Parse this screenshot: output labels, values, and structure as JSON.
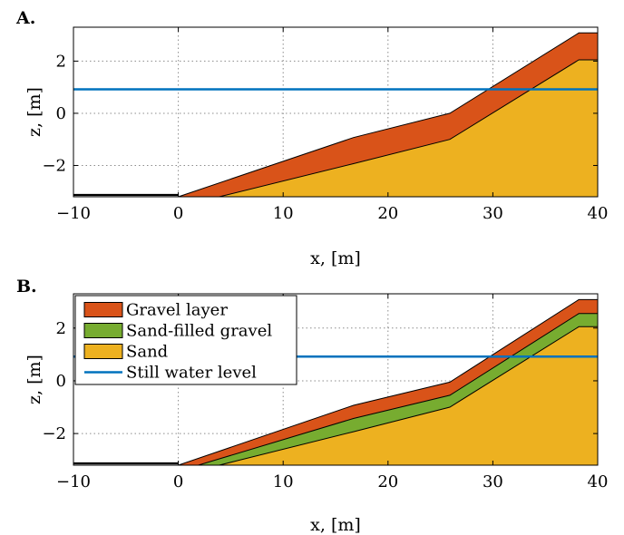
{
  "figure": {
    "panel_labels": [
      "A.",
      "B."
    ]
  },
  "colors": {
    "gravel": "#D95319",
    "sand_filled_gravel": "#77AC30",
    "sand": "#EDB120",
    "water": "#0072BD",
    "grid": "#8c8c8c"
  },
  "chart_data": [
    {
      "type": "area",
      "panel": "A.",
      "xlabel": "x, [m]",
      "ylabel": "z, [m]",
      "xlim": [
        -10,
        40
      ],
      "ylim": [
        -3.2,
        3.3
      ],
      "xticks": [
        -10,
        0,
        10,
        20,
        30,
        40
      ],
      "yticks": [
        -2,
        0,
        2
      ],
      "xtick_labels": [
        "−10",
        "0",
        "10",
        "20",
        "30",
        "40"
      ],
      "ytick_labels": [
        "−2",
        "0",
        "2"
      ],
      "grid": true,
      "still_water_level": 0.92,
      "layers": [
        {
          "name": "Gravel layer",
          "color": "#D95319",
          "x": [
            0,
            16.7,
            25.9,
            38.2,
            40
          ],
          "top": [
            -3.2,
            -0.93,
            0.0,
            3.08,
            3.08
          ]
        },
        {
          "name": "Sand",
          "color": "#EDB120",
          "x": [
            3.9,
            16.7,
            25.9,
            38.2,
            40
          ],
          "top": [
            -3.2,
            -1.93,
            -1.0,
            2.05,
            2.05
          ]
        }
      ],
      "legend": []
    },
    {
      "type": "area",
      "panel": "B.",
      "xlabel": "x, [m]",
      "ylabel": "z, [m]",
      "xlim": [
        -10,
        40
      ],
      "ylim": [
        -3.2,
        3.3
      ],
      "xticks": [
        -10,
        0,
        10,
        20,
        30,
        40
      ],
      "yticks": [
        -2,
        0,
        2
      ],
      "xtick_labels": [
        "−10",
        "0",
        "10",
        "20",
        "30",
        "40"
      ],
      "ytick_labels": [
        "−2",
        "0",
        "2"
      ],
      "grid": true,
      "still_water_level": 0.92,
      "layers": [
        {
          "name": "Gravel layer",
          "color": "#D95319",
          "x": [
            0,
            16.7,
            25.9,
            38.2,
            40
          ],
          "top": [
            -3.2,
            -0.93,
            -0.05,
            3.08,
            3.08
          ]
        },
        {
          "name": "Sand-filled gravel",
          "color": "#77AC30",
          "x": [
            1.9,
            16.7,
            25.9,
            38.2,
            40
          ],
          "top": [
            -3.2,
            -1.43,
            -0.55,
            2.55,
            2.55
          ]
        },
        {
          "name": "Sand",
          "color": "#EDB120",
          "x": [
            3.9,
            16.7,
            25.9,
            38.2,
            40
          ],
          "top": [
            -3.2,
            -1.93,
            -1.0,
            2.05,
            2.05
          ]
        }
      ],
      "legend": [
        {
          "label": "Gravel layer",
          "kind": "patch",
          "color": "#D95319"
        },
        {
          "label": "Sand-filled gravel",
          "kind": "patch",
          "color": "#77AC30"
        },
        {
          "label": "Sand",
          "kind": "patch",
          "color": "#EDB120"
        },
        {
          "label": "Still water level",
          "kind": "line",
          "color": "#0072BD"
        }
      ],
      "legend_position": "top-left"
    }
  ]
}
